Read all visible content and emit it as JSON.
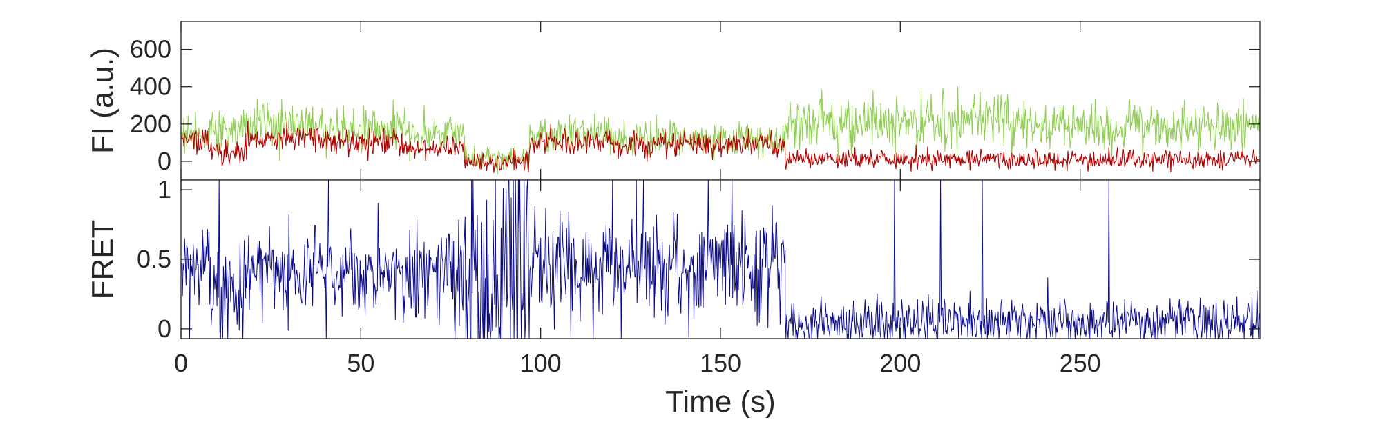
{
  "chart_data": [
    {
      "type": "line",
      "ylabel": "FI (a.u.)",
      "xlim": [
        0,
        300
      ],
      "ylim": [
        -100,
        750
      ],
      "yticks": [
        0,
        200,
        400,
        600
      ],
      "ytick_labels": [
        "0",
        "200",
        "400",
        "600"
      ],
      "grid": false,
      "series": [
        {
          "color": "#8fd14f",
          "role": "donor",
          "segments": [
            {
              "x": [
                0,
                8
              ],
              "mean": 150,
              "noise": 50
            },
            {
              "x": [
                8,
                18
              ],
              "mean": 170,
              "noise": 55
            },
            {
              "x": [
                18,
                40
              ],
              "mean": 200,
              "noise": 60
            },
            {
              "x": [
                40,
                62
              ],
              "mean": 170,
              "noise": 55
            },
            {
              "x": [
                62,
                79
              ],
              "mean": 150,
              "noise": 50
            },
            {
              "x": [
                79,
                97
              ],
              "mean": 20,
              "noise": 35
            },
            {
              "x": [
                97,
                120
              ],
              "mean": 140,
              "noise": 45
            },
            {
              "x": [
                120,
                168
              ],
              "mean": 120,
              "noise": 45
            },
            {
              "x": [
                168,
                230
              ],
              "mean": 210,
              "noise": 70
            },
            {
              "x": [
                230,
                300
              ],
              "mean": 190,
              "noise": 65
            }
          ]
        },
        {
          "color": "#b30000",
          "role": "acceptor",
          "segments": [
            {
              "x": [
                0,
                8
              ],
              "mean": 120,
              "noise": 35
            },
            {
              "x": [
                8,
                18
              ],
              "mean": 50,
              "noise": 30
            },
            {
              "x": [
                18,
                40
              ],
              "mean": 120,
              "noise": 35
            },
            {
              "x": [
                40,
                62
              ],
              "mean": 100,
              "noise": 35
            },
            {
              "x": [
                62,
                79
              ],
              "mean": 70,
              "noise": 30
            },
            {
              "x": [
                79,
                97
              ],
              "mean": 0,
              "noise": 25
            },
            {
              "x": [
                97,
                120
              ],
              "mean": 100,
              "noise": 35
            },
            {
              "x": [
                120,
                168
              ],
              "mean": 90,
              "noise": 35
            },
            {
              "x": [
                168,
                300
              ],
              "mean": 10,
              "noise": 25
            }
          ]
        }
      ]
    },
    {
      "type": "line",
      "xlabel": "Time (s)",
      "ylabel": "FRET",
      "xlim": [
        0,
        300
      ],
      "ylim": [
        -0.07,
        1.07
      ],
      "xticks": [
        0,
        50,
        100,
        150,
        200,
        250
      ],
      "xtick_labels": [
        "0",
        "50",
        "100",
        "150",
        "200",
        "250"
      ],
      "yticks": [
        0,
        0.5,
        1
      ],
      "ytick_labels": [
        "0",
        "0.5",
        "1"
      ],
      "grid": false,
      "series": [
        {
          "color": "#0a0a8c",
          "role": "fret",
          "segments": [
            {
              "x": [
                0,
                8
              ],
              "mean": 0.45,
              "noise": 0.12
            },
            {
              "x": [
                8,
                18
              ],
              "mean": 0.25,
              "noise": 0.18
            },
            {
              "x": [
                18,
                62
              ],
              "mean": 0.42,
              "noise": 0.14
            },
            {
              "x": [
                62,
                79
              ],
              "mean": 0.4,
              "noise": 0.18
            },
            {
              "x": [
                79,
                97
              ],
              "mean": 0.4,
              "noise": 0.45
            },
            {
              "x": [
                97,
                168
              ],
              "mean": 0.45,
              "noise": 0.18
            },
            {
              "x": [
                168,
                300
              ],
              "mean": 0.05,
              "noise": 0.08
            }
          ]
        }
      ]
    }
  ]
}
